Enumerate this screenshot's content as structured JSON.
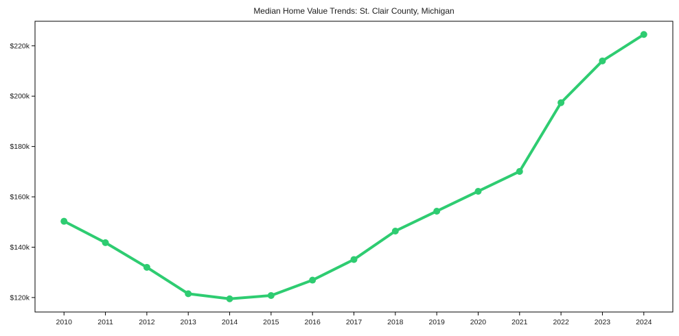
{
  "chart_data": {
    "type": "line",
    "title": "Median Home Value Trends: St. Clair County, Michigan",
    "xlabel": "",
    "ylabel": "",
    "x": [
      2010,
      2011,
      2012,
      2013,
      2014,
      2015,
      2016,
      2017,
      2018,
      2019,
      2020,
      2021,
      2022,
      2023,
      2024
    ],
    "x_tick_labels": [
      "2010",
      "2011",
      "2012",
      "2013",
      "2014",
      "2015",
      "2016",
      "2017",
      "2018",
      "2019",
      "2020",
      "2021",
      "2022",
      "2023",
      "2024"
    ],
    "series": [
      {
        "name": "Median Home Value",
        "values": [
          150.3,
          141.8,
          132.0,
          121.5,
          119.5,
          120.8,
          126.9,
          135.1,
          146.4,
          154.3,
          162.2,
          170.1,
          197.4,
          214.0,
          224.5
        ],
        "unit": "USD thousands",
        "color": "#2ecc71",
        "line_width": 4,
        "marker": "circle",
        "marker_radius": 5
      }
    ],
    "y_ticks": [
      120,
      140,
      160,
      180,
      200,
      220
    ],
    "y_tick_labels": [
      "$120k",
      "$140k",
      "$160k",
      "$180k",
      "$200k",
      "$220k"
    ],
    "xlim": [
      2009.3,
      2024.7
    ],
    "ylim": [
      114.25,
      229.75
    ],
    "grid": false,
    "legend": "none",
    "background_color": "#ffffff",
    "axis_color": "#000000",
    "text_color": "#1a1a1a"
  }
}
